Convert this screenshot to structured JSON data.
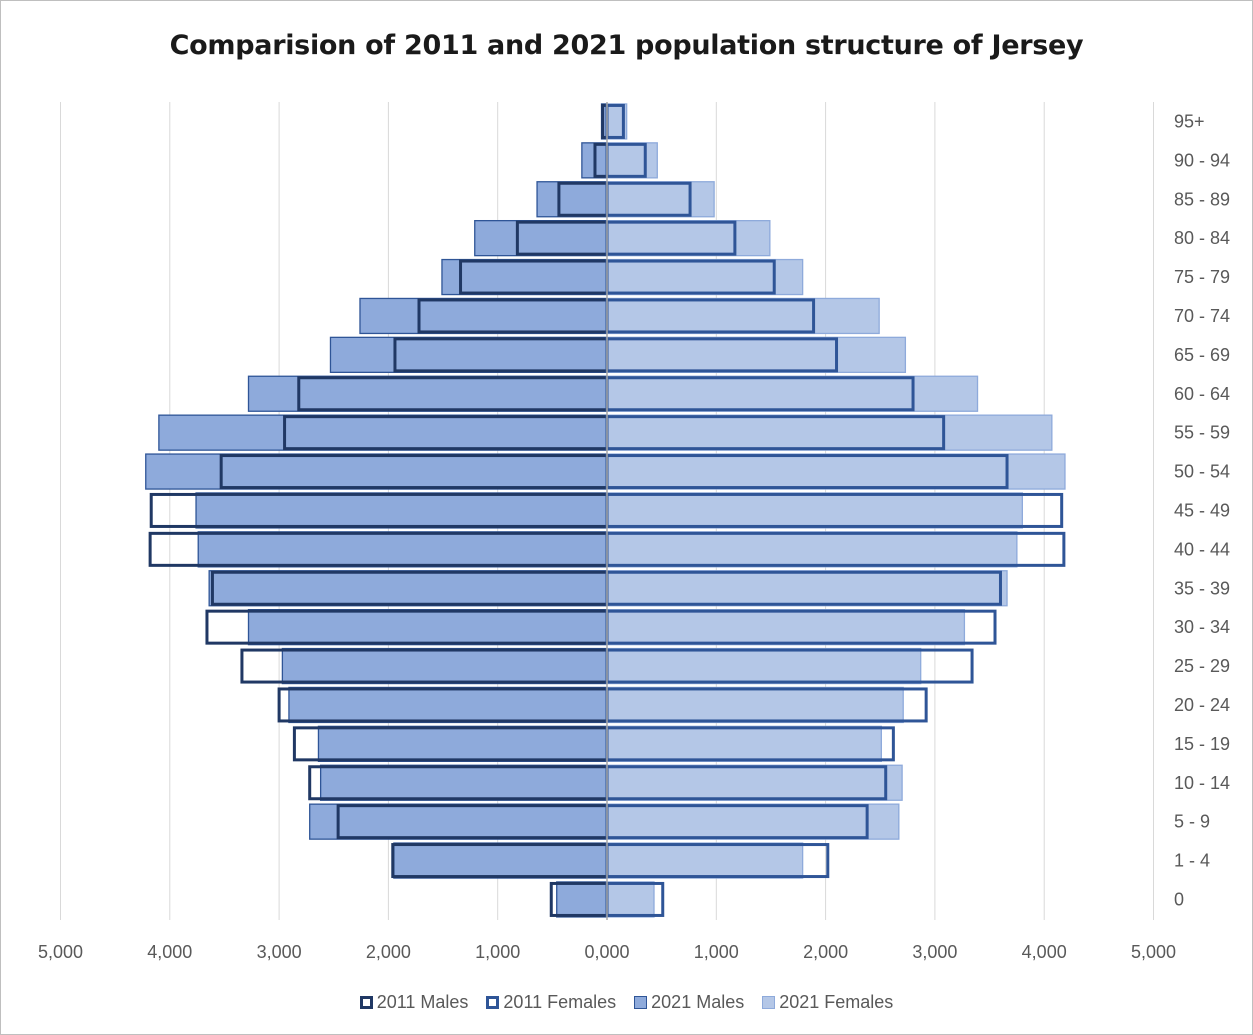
{
  "chart_data": {
    "type": "bar",
    "orientation": "horizontal-pyramid",
    "title": "Comparision of 2011 and 2021 population structure of Jersey",
    "categories": [
      "0",
      "1 - 4",
      "5 - 9",
      "10 - 14",
      "15 - 19",
      "20 - 24",
      "25 - 29",
      "30 - 34",
      "35 - 39",
      "40 - 44",
      "45 - 49",
      "50 - 54",
      "55 - 59",
      "60 - 64",
      "65 - 69",
      "70 - 74",
      "75 - 79",
      "80 - 84",
      "85 - 89",
      "90 - 94",
      "95+"
    ],
    "x_ticks": [
      "5,000",
      "4,000",
      "3,000",
      "2,000",
      "1,000",
      "0,000",
      "1,000",
      "2,000",
      "3,000",
      "4,000",
      "5,000"
    ],
    "xlim": [
      -5000,
      5000
    ],
    "grid": true,
    "legend_position": "bottom",
    "series": [
      {
        "name": "2011 Males",
        "side": "left",
        "style": "outline",
        "color": "#203864",
        "values": [
          510,
          1960,
          2460,
          2720,
          2860,
          3000,
          3340,
          3660,
          3610,
          4180,
          4170,
          3530,
          2950,
          2820,
          1940,
          1720,
          1340,
          820,
          440,
          110,
          40
        ]
      },
      {
        "name": "2011 Females",
        "side": "right",
        "style": "outline",
        "color": "#2f5597",
        "values": [
          510,
          2020,
          2380,
          2550,
          2620,
          2920,
          3340,
          3550,
          3600,
          4180,
          4160,
          3660,
          3080,
          2800,
          2100,
          1890,
          1530,
          1170,
          760,
          350,
          150
        ]
      },
      {
        "name": "2021 Males",
        "side": "left",
        "style": "fill",
        "color": "#8eaadb",
        "border": "#2f5597",
        "values": [
          460,
          1950,
          2720,
          2620,
          2640,
          2910,
          2970,
          3280,
          3640,
          3740,
          3760,
          4220,
          4100,
          3280,
          2530,
          2260,
          1510,
          1210,
          640,
          230,
          50
        ]
      },
      {
        "name": "2021 Females",
        "side": "right",
        "style": "fill",
        "color": "#b4c7e7",
        "border": "#8eaadb",
        "values": [
          430,
          1790,
          2670,
          2700,
          2510,
          2710,
          2870,
          3270,
          3660,
          3750,
          3800,
          4190,
          4070,
          3390,
          2730,
          2490,
          1790,
          1490,
          980,
          460,
          180
        ]
      }
    ]
  }
}
